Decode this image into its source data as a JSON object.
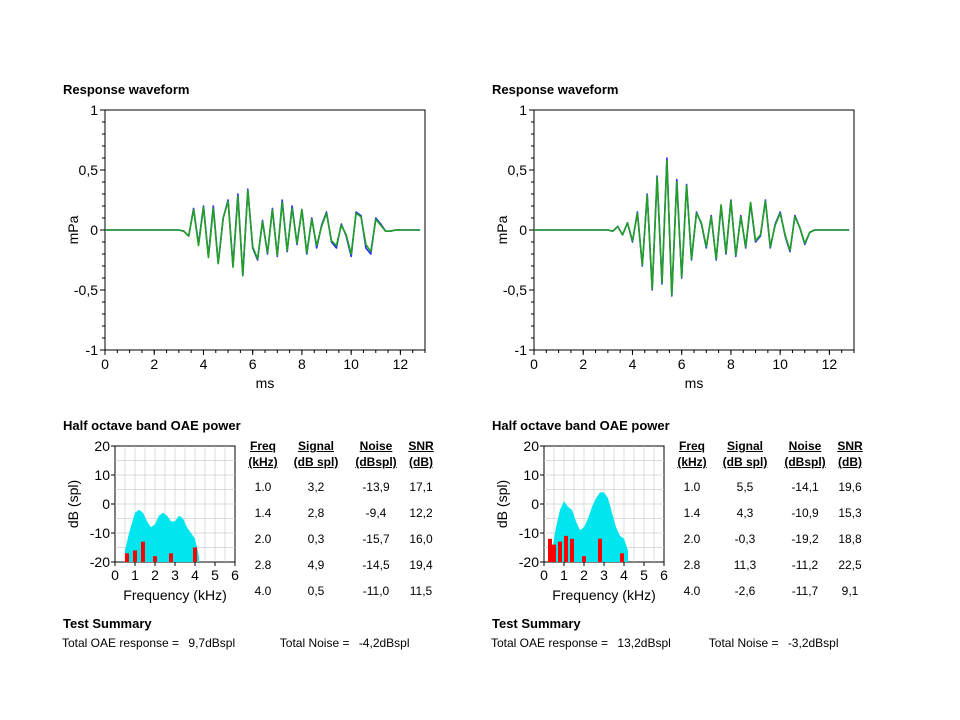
{
  "panels": [
    {
      "waveform_title": "Response waveform",
      "oae_title": "Half octave band OAE power",
      "summary_title": "Test Summary",
      "total_oae_label": "Total OAE response =",
      "total_oae_value": "9,7dBspl",
      "total_noise_label": "Total Noise =",
      "total_noise_value": "-4,2dBspl",
      "table": {
        "headers": [
          [
            "Freq",
            "(kHz)"
          ],
          [
            "Signal",
            "(dB spl)"
          ],
          [
            "Noise",
            "(dBspl)"
          ],
          [
            "SNR",
            "(dB)"
          ]
        ],
        "rows": [
          [
            "1.0",
            "3,2",
            "-13,9",
            "17,1"
          ],
          [
            "1.4",
            "2,8",
            "-9,4",
            "12,2"
          ],
          [
            "2.0",
            "0,3",
            "-15,7",
            "16,0"
          ],
          [
            "2.8",
            "4,9",
            "-14,5",
            "19,4"
          ],
          [
            "4.0",
            "0,5",
            "-11,0",
            "11,5"
          ]
        ]
      }
    },
    {
      "waveform_title": "Response waveform",
      "oae_title": "Half octave band OAE power",
      "summary_title": "Test Summary",
      "total_oae_label": "Total OAE response =",
      "total_oae_value": "13,2dBspl",
      "total_noise_label": "Total Noise =",
      "total_noise_value": "-3,2dBspl",
      "table": {
        "headers": [
          [
            "Freq",
            "(kHz)"
          ],
          [
            "Signal",
            "(dB spl)"
          ],
          [
            "Noise",
            "(dBspl)"
          ],
          [
            "SNR",
            "(dB)"
          ]
        ],
        "rows": [
          [
            "1.0",
            "5,5",
            "-14,1",
            "19,6"
          ],
          [
            "1.4",
            "4,3",
            "-10,9",
            "15,3"
          ],
          [
            "2.0",
            "-0,3",
            "-19,2",
            "18,8"
          ],
          [
            "2.8",
            "11,3",
            "-11,2",
            "22,5"
          ],
          [
            "4.0",
            "-2,6",
            "-11,7",
            "9,1"
          ]
        ]
      }
    }
  ],
  "chart_data": [
    {
      "type": "line",
      "xlabel": "ms",
      "ylabel": "mPa",
      "xlim": [
        0,
        13
      ],
      "ylim": [
        -1,
        1
      ],
      "xticks": [
        "0",
        "2",
        "4",
        "6",
        "8",
        "10",
        "12"
      ],
      "yticks": [
        "1",
        "0,5",
        "0",
        "-0,5",
        "-1"
      ],
      "series_colors": [
        "#2a2aff",
        "#22a022"
      ],
      "x": [
        0,
        3.0,
        3.2,
        3.4,
        3.6,
        3.8,
        4.0,
        4.2,
        4.4,
        4.6,
        4.8,
        5.0,
        5.2,
        5.4,
        5.6,
        5.8,
        6.0,
        6.2,
        6.4,
        6.6,
        6.8,
        7.0,
        7.2,
        7.4,
        7.6,
        7.8,
        8.0,
        8.2,
        8.4,
        8.6,
        8.8,
        9.0,
        9.2,
        9.4,
        9.6,
        9.8,
        10.0,
        10.2,
        10.4,
        10.6,
        10.8,
        11.0,
        11.2,
        11.4,
        11.6,
        11.8,
        12.0,
        12.4,
        12.8
      ],
      "series": [
        {
          "values": [
            0,
            0,
            -0.01,
            -0.05,
            0.18,
            -0.12,
            0.2,
            -0.22,
            0.2,
            -0.28,
            0.1,
            0.25,
            -0.3,
            0.3,
            -0.38,
            0.34,
            -0.15,
            -0.25,
            0.08,
            -0.2,
            0.18,
            -0.22,
            0.25,
            -0.18,
            0.2,
            -0.12,
            0.17,
            -0.2,
            0.1,
            -0.15,
            0.04,
            0.15,
            -0.1,
            -0.15,
            0.05,
            -0.05,
            -0.22,
            0.15,
            0.12,
            -0.15,
            -0.2,
            0.1,
            0.05,
            -0.01,
            -0.01,
            0,
            0,
            0,
            0
          ]
        },
        {
          "values": [
            0,
            0,
            -0.01,
            -0.05,
            0.17,
            -0.13,
            0.19,
            -0.23,
            0.18,
            -0.28,
            0.1,
            0.24,
            -0.31,
            0.28,
            -0.38,
            0.33,
            -0.14,
            -0.24,
            0.07,
            -0.19,
            0.17,
            -0.21,
            0.23,
            -0.17,
            0.18,
            -0.11,
            0.17,
            -0.19,
            0.09,
            -0.13,
            0.03,
            0.14,
            -0.09,
            -0.13,
            0.04,
            -0.04,
            -0.2,
            0.14,
            0.11,
            -0.12,
            -0.18,
            0.09,
            0.04,
            -0.01,
            -0.01,
            0,
            0,
            0,
            0
          ]
        }
      ]
    },
    {
      "type": "line",
      "xlabel": "ms",
      "ylabel": "mPa",
      "xlim": [
        0,
        13
      ],
      "ylim": [
        -1,
        1
      ],
      "xticks": [
        "0",
        "2",
        "4",
        "6",
        "8",
        "10",
        "12"
      ],
      "yticks": [
        "1",
        "0,5",
        "0",
        "-0,5",
        "-1"
      ],
      "series_colors": [
        "#2a2aff",
        "#22a022"
      ],
      "x": [
        0,
        3.0,
        3.2,
        3.4,
        3.6,
        3.8,
        4.0,
        4.2,
        4.4,
        4.6,
        4.8,
        5.0,
        5.2,
        5.4,
        5.6,
        5.8,
        6.0,
        6.2,
        6.4,
        6.6,
        6.8,
        7.0,
        7.2,
        7.4,
        7.6,
        7.8,
        8.0,
        8.2,
        8.4,
        8.6,
        8.8,
        9.0,
        9.2,
        9.4,
        9.6,
        9.8,
        10.0,
        10.2,
        10.4,
        10.6,
        10.8,
        11.0,
        11.2,
        11.4,
        11.6,
        11.8,
        12.0,
        12.4,
        12.8
      ],
      "series": [
        {
          "values": [
            0,
            0,
            -0.01,
            0.03,
            -0.04,
            0.06,
            -0.1,
            0.15,
            -0.3,
            0.3,
            -0.5,
            0.45,
            -0.45,
            0.6,
            -0.55,
            0.42,
            -0.4,
            0.38,
            -0.25,
            0.15,
            0.05,
            -0.15,
            0.12,
            -0.25,
            0.2,
            -0.2,
            0.25,
            -0.22,
            0.12,
            -0.15,
            0.22,
            -0.1,
            -0.05,
            0.25,
            -0.15,
            0.05,
            0.15,
            -0.05,
            -0.18,
            0.12,
            0.02,
            -0.12,
            -0.02,
            0,
            0,
            0,
            0,
            0,
            0
          ]
        },
        {
          "values": [
            0,
            0,
            -0.01,
            0.03,
            -0.04,
            0.06,
            -0.09,
            0.14,
            -0.29,
            0.29,
            -0.49,
            0.44,
            -0.44,
            0.58,
            -0.54,
            0.4,
            -0.39,
            0.37,
            -0.24,
            0.14,
            0.06,
            -0.14,
            0.11,
            -0.24,
            0.21,
            -0.19,
            0.24,
            -0.21,
            0.11,
            -0.14,
            0.23,
            -0.09,
            -0.04,
            0.24,
            -0.14,
            0.04,
            0.14,
            -0.04,
            -0.17,
            0.11,
            0.02,
            -0.11,
            -0.02,
            0,
            0,
            0,
            0,
            0,
            0
          ]
        }
      ]
    },
    {
      "type": "area",
      "xlabel": "Frequency (kHz)",
      "ylabel": "dB (spl)",
      "xlim": [
        0,
        6
      ],
      "ylim": [
        -20,
        20
      ],
      "xticks": [
        "0",
        "1",
        "2",
        "3",
        "4",
        "5",
        "6"
      ],
      "yticks": [
        "20",
        "10",
        "0",
        "-10",
        "-20"
      ],
      "noise_color": "#00e5ee",
      "signal_color": "#ff0000",
      "noise_band": {
        "x": [
          0.5,
          0.7,
          1.0,
          1.2,
          1.4,
          1.6,
          1.8,
          2.0,
          2.2,
          2.4,
          2.6,
          2.8,
          3.0,
          3.2,
          3.4,
          3.6,
          3.8,
          4.0,
          4.2
        ],
        "values": [
          -16,
          -10,
          -3,
          -2,
          -3,
          -6,
          -8,
          -7,
          -4,
          -3,
          -4,
          -6,
          -6,
          -4,
          -5,
          -8,
          -10,
          -12,
          -18
        ]
      },
      "signal_bars": {
        "x": [
          0.6,
          1.0,
          1.4,
          2.0,
          2.8,
          4.0
        ],
        "values": [
          -17,
          -16,
          -13,
          -18,
          -17,
          -15
        ]
      }
    },
    {
      "type": "area",
      "xlabel": "Frequency (kHz)",
      "ylabel": "dB (spl)",
      "xlim": [
        0,
        6
      ],
      "ylim": [
        -20,
        20
      ],
      "xticks": [
        "0",
        "1",
        "2",
        "3",
        "4",
        "5",
        "6"
      ],
      "yticks": [
        "20",
        "10",
        "0",
        "-10",
        "-20"
      ],
      "noise_color": "#00e5ee",
      "signal_color": "#ff0000",
      "noise_band": {
        "x": [
          0.4,
          0.6,
          0.8,
          1.0,
          1.2,
          1.4,
          1.6,
          1.8,
          2.0,
          2.2,
          2.4,
          2.6,
          2.8,
          3.0,
          3.2,
          3.4,
          3.6,
          3.8,
          4.0,
          4.2
        ],
        "values": [
          -16,
          -8,
          -2,
          1,
          -1,
          -2,
          -6,
          -9,
          -8,
          -5,
          -1,
          2,
          4,
          4,
          2,
          -3,
          -8,
          -11,
          -12,
          -16
        ]
      },
      "signal_bars": {
        "x": [
          0.3,
          0.5,
          0.8,
          1.1,
          1.4,
          2.0,
          2.8,
          3.9
        ],
        "values": [
          -12,
          -14,
          -13,
          -11,
          -12,
          -18,
          -12,
          -17
        ]
      }
    }
  ]
}
